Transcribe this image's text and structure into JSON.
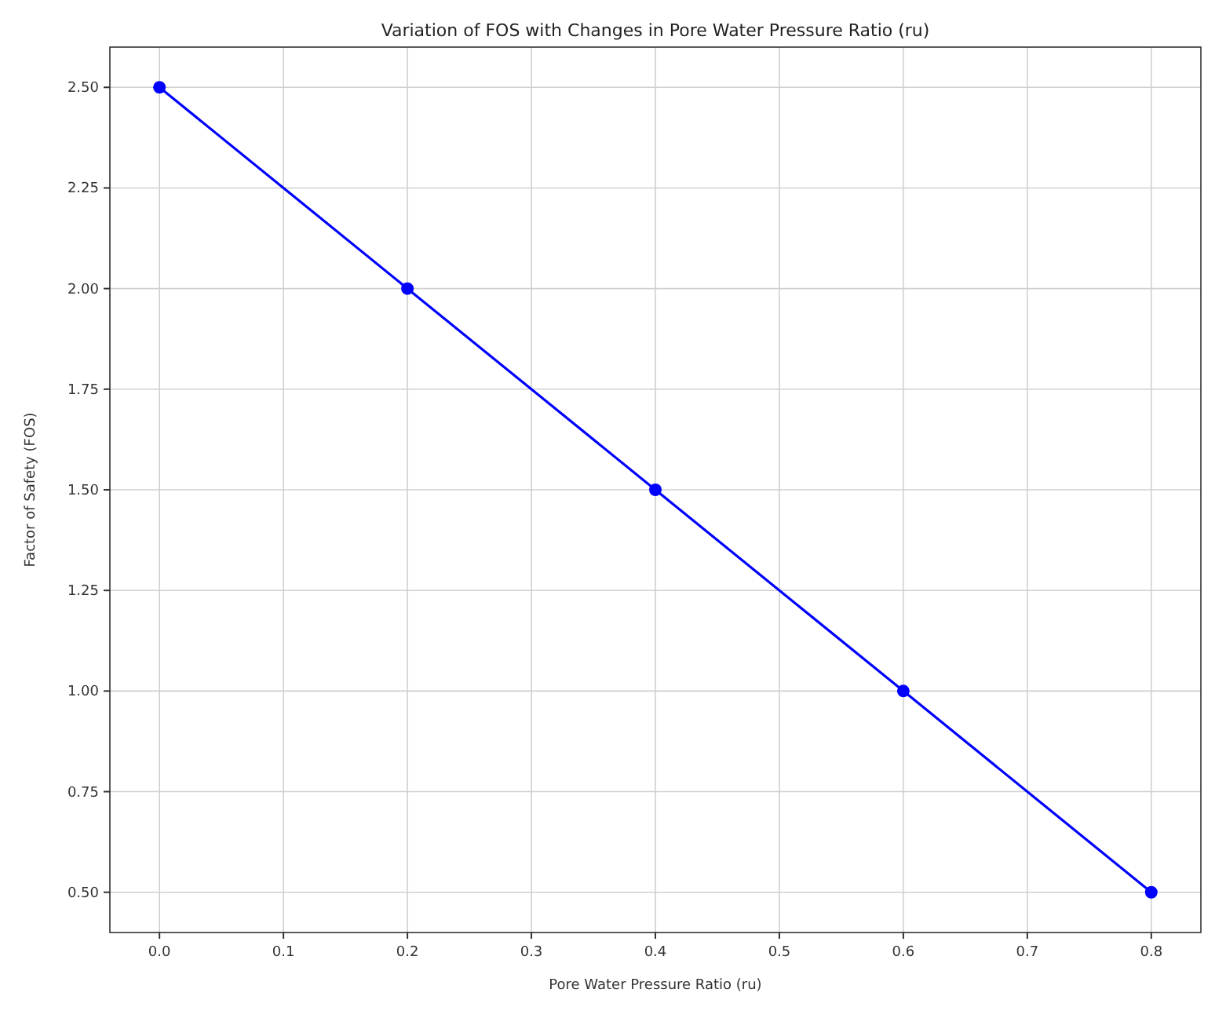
{
  "chart_data": {
    "type": "line",
    "title": "Variation of FOS with Changes in Pore Water Pressure Ratio (ru)",
    "xlabel": "Pore Water Pressure Ratio (ru)",
    "ylabel": "Factor of Safety (FOS)",
    "x": [
      0.0,
      0.2,
      0.4,
      0.6,
      0.8
    ],
    "series": [
      {
        "color": "#0000ff",
        "values": [
          2.5,
          2.0,
          1.5,
          1.0,
          0.5
        ]
      }
    ],
    "xlim": [
      -0.04,
      0.84
    ],
    "xticks": [
      {
        "value": 0,
        "label": "0.0"
      },
      0.1,
      0.2,
      0.3,
      0.4,
      0.5,
      0.6,
      0.7,
      0.8
    ],
    "ylim": [
      0.4,
      2.6
    ],
    "yticks": [
      {
        "value": 0.5,
        "label": "0.50"
      },
      {
        "value": 0.75,
        "label": "0.75"
      },
      {
        "value": 1,
        "label": "1.00"
      },
      {
        "value": 1.25,
        "label": "1.25"
      },
      {
        "value": 1.5,
        "label": "1.50"
      },
      {
        "value": 1.75,
        "label": "1.75"
      },
      {
        "value": 2,
        "label": "2.00"
      },
      {
        "value": 2.25,
        "label": "2.25"
      },
      {
        "value": 2.5,
        "label": "2.50"
      }
    ],
    "grid": true,
    "marker": "circle",
    "line_style": "solid"
  }
}
